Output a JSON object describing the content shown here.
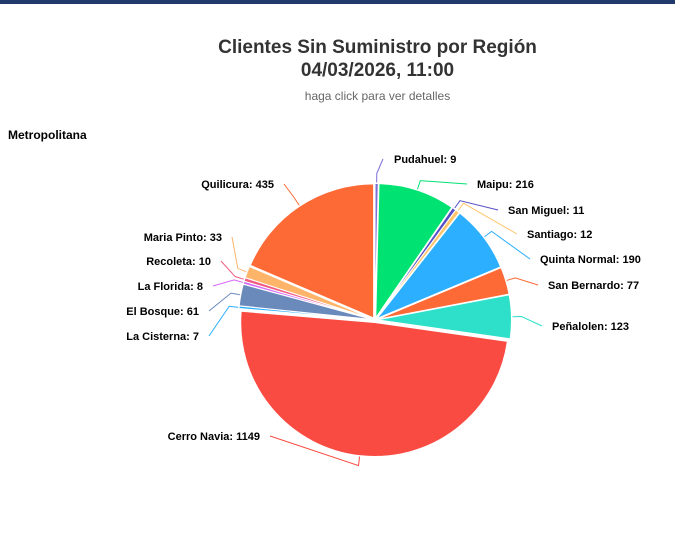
{
  "header": {
    "title_line1": "Clientes Sin Suministro por Región",
    "title_line2": "04/03/2026, 11:00",
    "subtitle": "haga click para ver detalles"
  },
  "region_label": "Metropolitana",
  "colors": {
    "top_bar": "#1f3a6b"
  },
  "chart_data": {
    "type": "pie",
    "title": "Clientes Sin Suministro por Región",
    "subtitle": "haga click para ver detalles",
    "series_name": "Metropolitana",
    "slices": [
      {
        "name": "Pudahuel",
        "value": 9,
        "color": "#7b6fd6",
        "label": "Pudahuel: 9"
      },
      {
        "name": "Maipu",
        "value": 216,
        "color": "#00e272",
        "label": "Maipu: 216"
      },
      {
        "name": "San Miguel",
        "value": 11,
        "color": "#544fc5",
        "label": "San Miguel: 11"
      },
      {
        "name": "Santiago",
        "value": 12,
        "color": "#fec56b",
        "label": "Santiago: 12"
      },
      {
        "name": "Quinta Normal",
        "value": 190,
        "color": "#2caffe",
        "label": "Quinta Normal: 190"
      },
      {
        "name": "San Bernardo",
        "value": 77,
        "color": "#fe6a35",
        "label": "San Bernardo: 77"
      },
      {
        "name": "Peñalolen",
        "value": 123,
        "color": "#2ee0ca",
        "label": "Peñalolen: 123"
      },
      {
        "name": "Cerro Navia",
        "value": 1149,
        "color": "#fa4b42",
        "label": "Cerro Navia: 1149"
      },
      {
        "name": "La Cisterna",
        "value": 7,
        "color": "#2caffe",
        "label": "La Cisterna: 7"
      },
      {
        "name": "El Bosque",
        "value": 61,
        "color": "#6b8abc",
        "label": "El Bosque: 61"
      },
      {
        "name": "La Florida",
        "value": 8,
        "color": "#d568fb",
        "label": "La Florida: 8"
      },
      {
        "name": "Recoleta",
        "value": 10,
        "color": "#f15c80",
        "label": "Recoleta: 10"
      },
      {
        "name": "Maria Pinto",
        "value": 33,
        "color": "#feb56a",
        "label": "Maria Pinto: 33"
      },
      {
        "name": "Quilicura",
        "value": 435,
        "color": "#fe6a35",
        "label": "Quilicura: 435"
      }
    ]
  }
}
